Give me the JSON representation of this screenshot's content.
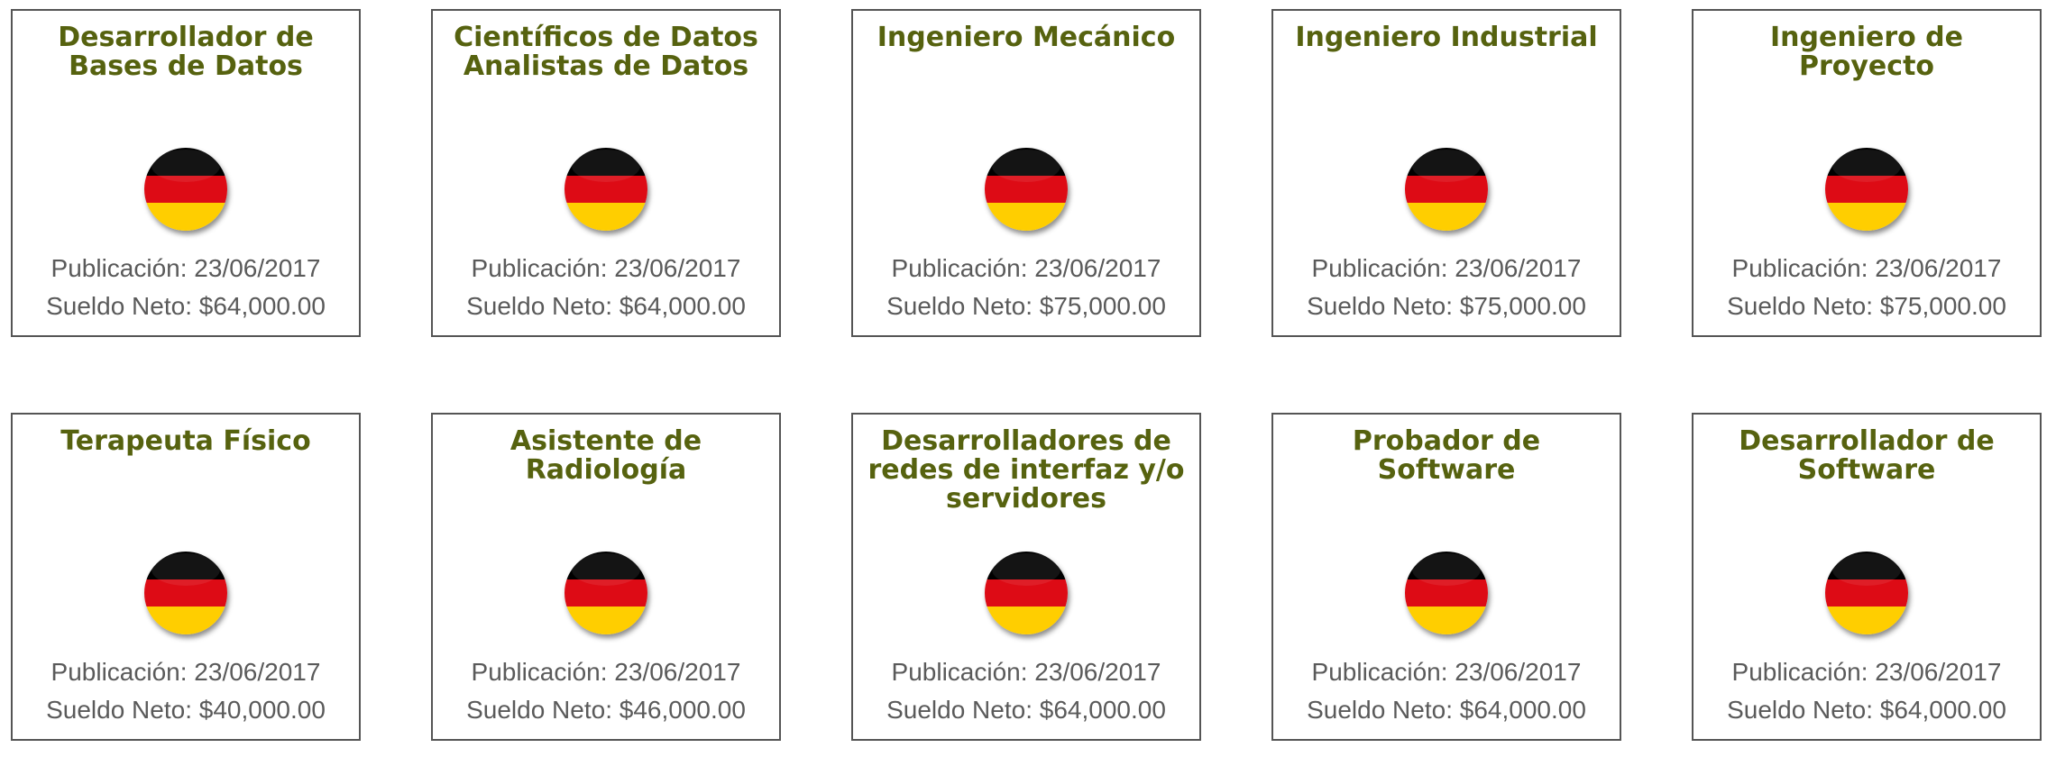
{
  "colors": {
    "title": "#56620f",
    "text": "#5a5a5a",
    "border": "#555555",
    "flag_black": "#000000",
    "flag_red": "#dd0b15",
    "flag_gold": "#ffce00"
  },
  "flag_icon": "germany-flag-icon",
  "jobs": [
    {
      "title": "Desarrollador de Bases de Datos",
      "published": "Publicación: 23/06/2017",
      "salary": "Sueldo Neto: $64,000.00"
    },
    {
      "title": "Científicos de Datos Analistas de Datos",
      "published": "Publicación: 23/06/2017",
      "salary": "Sueldo Neto: $64,000.00"
    },
    {
      "title": "Ingeniero Mecánico",
      "published": "Publicación: 23/06/2017",
      "salary": "Sueldo Neto: $75,000.00"
    },
    {
      "title": "Ingeniero Industrial",
      "published": "Publicación: 23/06/2017",
      "salary": "Sueldo Neto: $75,000.00"
    },
    {
      "title": "Ingeniero de Proyecto",
      "published": "Publicación: 23/06/2017",
      "salary": "Sueldo Neto: $75,000.00"
    },
    {
      "title": "Terapeuta Físico",
      "published": "Publicación: 23/06/2017",
      "salary": "Sueldo Neto: $40,000.00"
    },
    {
      "title": "Asistente de Radiología",
      "published": "Publicación: 23/06/2017",
      "salary": "Sueldo Neto: $46,000.00"
    },
    {
      "title": "Desarrolladores de redes de interfaz y/o servidores",
      "published": "Publicación: 23/06/2017",
      "salary": "Sueldo Neto: $64,000.00"
    },
    {
      "title": "Probador de Software",
      "published": "Publicación: 23/06/2017",
      "salary": "Sueldo Neto: $64,000.00"
    },
    {
      "title": "Desarrollador de Software",
      "published": "Publicación: 23/06/2017",
      "salary": "Sueldo Neto: $64,000.00"
    }
  ]
}
